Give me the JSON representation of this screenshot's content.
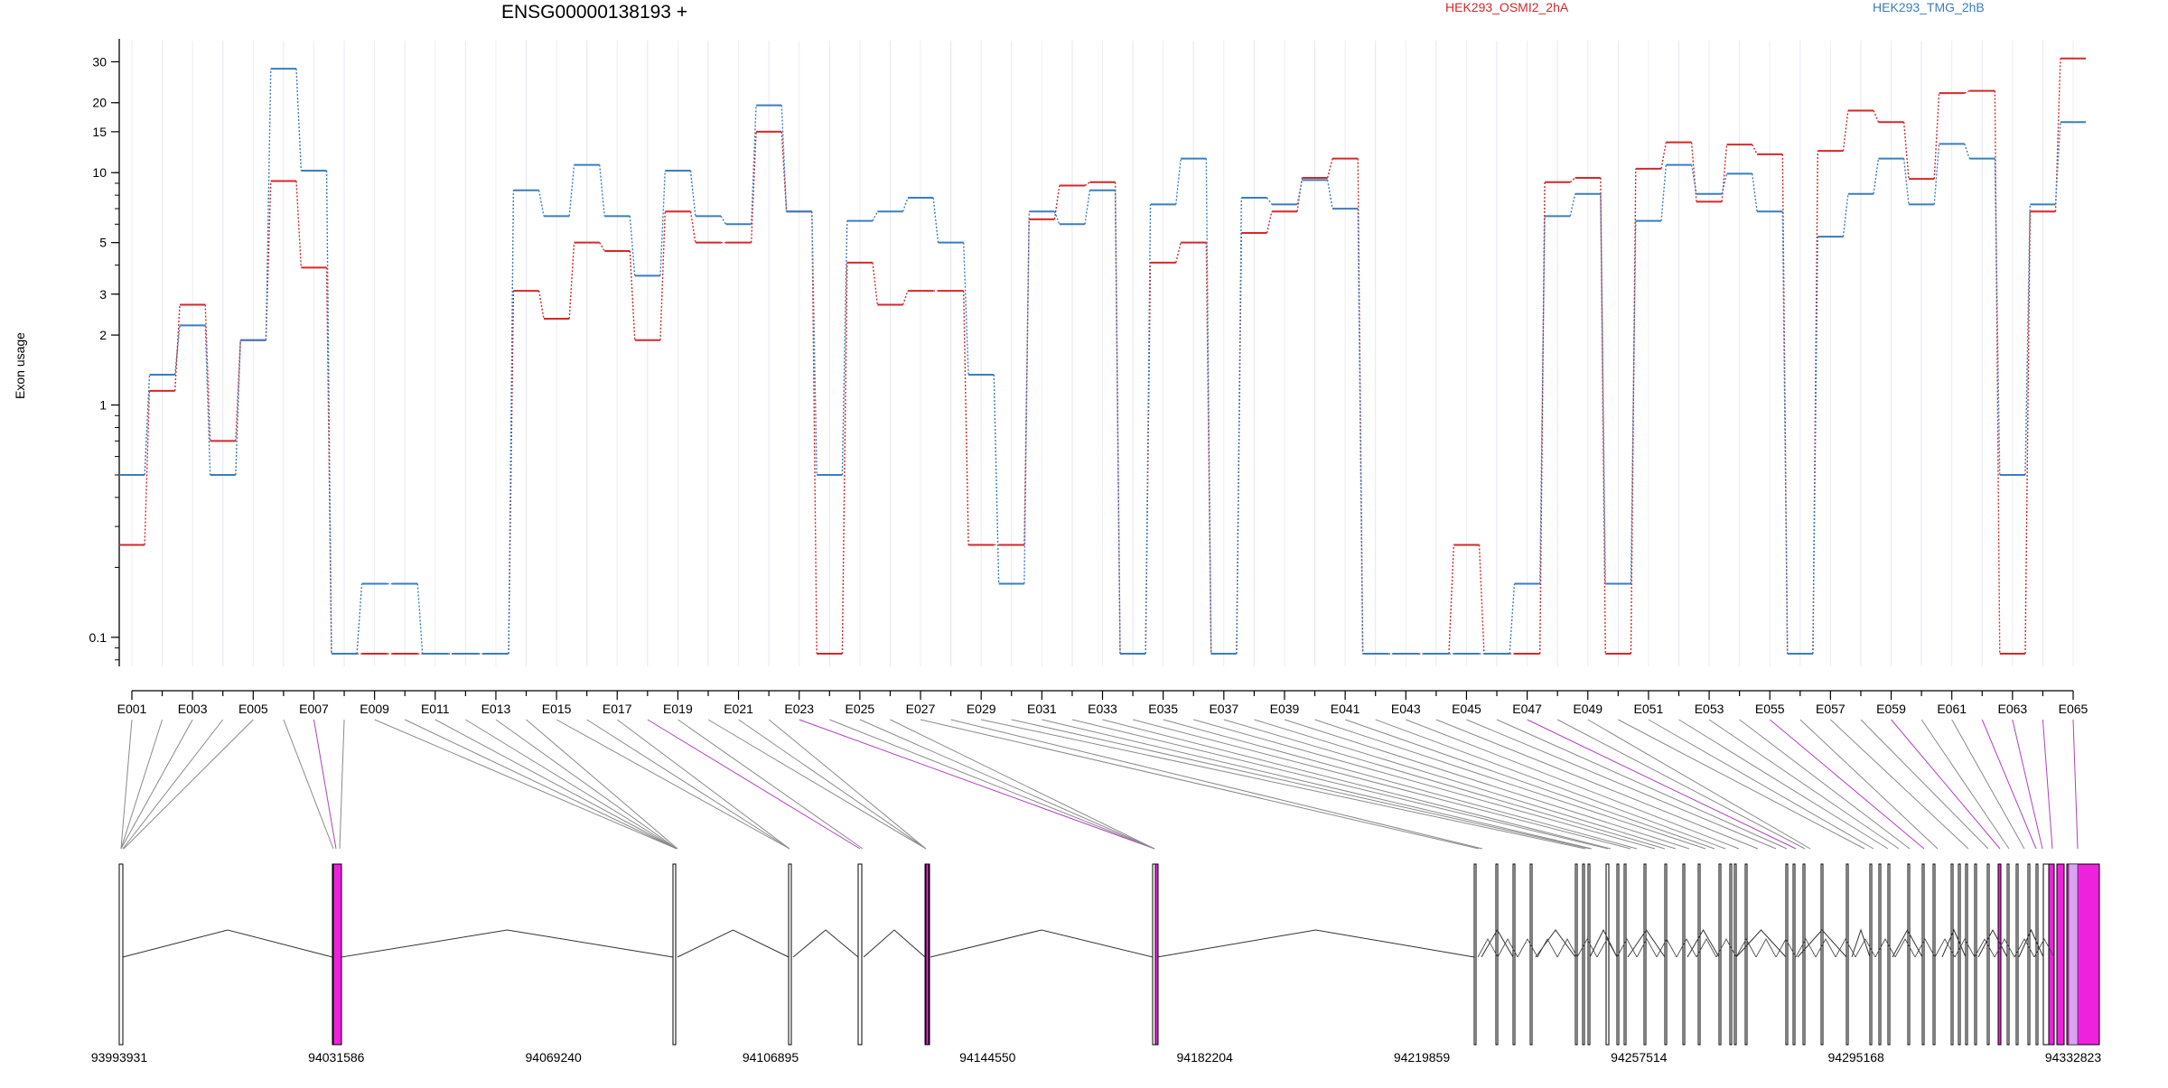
{
  "chart_data": {
    "type": "line",
    "title": "ENSG00000138193 +",
    "ylabel": "Exon usage",
    "yscale": "log",
    "ylim": [
      0.075,
      37
    ],
    "grid": true,
    "legend_placement": "top",
    "y_ticks": [
      0.1,
      1,
      2,
      3,
      5,
      10,
      15,
      20,
      30
    ],
    "y_tick_labels": [
      "0.1",
      "1",
      "2",
      "3",
      "5",
      "10",
      "15",
      "20",
      "30"
    ],
    "categories": [
      "E001",
      "E002",
      "E003",
      "E004",
      "E005",
      "E006",
      "E007",
      "E008",
      "E009",
      "E010",
      "E011",
      "E012",
      "E013",
      "E014",
      "E015",
      "E016",
      "E017",
      "E018",
      "E019",
      "E020",
      "E021",
      "E022",
      "E023",
      "E024",
      "E025",
      "E026",
      "E027",
      "E028",
      "E029",
      "E030",
      "E031",
      "E032",
      "E033",
      "E034",
      "E035",
      "E036",
      "E037",
      "E038",
      "E039",
      "E040",
      "E041",
      "E042",
      "E043",
      "E044",
      "E045",
      "E046",
      "E047",
      "E048",
      "E049",
      "E050",
      "E051",
      "E052",
      "E053",
      "E054",
      "E055",
      "E056",
      "E057",
      "E058",
      "E059",
      "E060",
      "E061",
      "E062",
      "E063",
      "E064",
      "E065"
    ],
    "x_tick_labels": [
      "E001",
      "E003",
      "E005",
      "E007",
      "E009",
      "E011",
      "E013",
      "E015",
      "E017",
      "E019",
      "E021",
      "E023",
      "E025",
      "E027",
      "E029",
      "E031",
      "E033",
      "E035",
      "E037",
      "E039",
      "E041",
      "E043",
      "E045",
      "E047",
      "E049",
      "E051",
      "E053",
      "E055",
      "E057",
      "E059",
      "E061",
      "E063",
      "E065"
    ],
    "series": [
      {
        "name": "HEK293_OSMI2_2hA",
        "color": "#d62728",
        "values": [
          0.25,
          1.15,
          2.7,
          0.7,
          1.9,
          9.2,
          3.9,
          0.085,
          0.085,
          0.085,
          0.085,
          0.085,
          0.085,
          3.1,
          2.35,
          5.0,
          4.6,
          1.9,
          6.8,
          5.0,
          5.0,
          15.0,
          6.8,
          0.085,
          4.1,
          2.7,
          3.1,
          3.1,
          0.25,
          0.25,
          6.3,
          8.8,
          9.1,
          0.085,
          4.1,
          5.0,
          0.085,
          5.5,
          6.8,
          9.5,
          11.5,
          0.085,
          0.085,
          0.085,
          0.25,
          0.085,
          0.085,
          9.1,
          9.5,
          0.085,
          10.4,
          13.5,
          7.5,
          13.2,
          12.0,
          0.085,
          12.4,
          18.5,
          16.5,
          9.4,
          22.0,
          22.5,
          0.085,
          6.8,
          31.0
        ]
      },
      {
        "name": "HEK293_TMG_2hB",
        "color": "#3a7dc0",
        "values": [
          0.5,
          1.35,
          2.2,
          0.5,
          1.9,
          28.0,
          10.2,
          0.085,
          0.17,
          0.17,
          0.085,
          0.085,
          0.085,
          8.4,
          6.5,
          10.8,
          6.5,
          3.6,
          10.2,
          6.5,
          6.0,
          19.5,
          6.8,
          0.5,
          6.2,
          6.8,
          7.8,
          5.0,
          1.35,
          0.17,
          6.8,
          6.0,
          8.4,
          0.085,
          7.3,
          11.5,
          0.085,
          7.8,
          7.3,
          9.3,
          7.0,
          0.085,
          0.085,
          0.085,
          0.085,
          0.085,
          0.17,
          6.5,
          8.1,
          0.17,
          6.2,
          10.8,
          8.1,
          9.9,
          6.8,
          0.085,
          5.3,
          8.1,
          11.5,
          7.3,
          13.3,
          11.5,
          0.5,
          7.3,
          16.5
        ]
      }
    ],
    "genomic_axis": {
      "tick_labels": [
        "93993931",
        "94031586",
        "94069240",
        "94106895",
        "94144550",
        "94182204",
        "94219859",
        "94257514",
        "94295168",
        "94332823"
      ],
      "exon_highlight": [
        "E007",
        "E018",
        "E023",
        "E047",
        "E055",
        "E059",
        "E062",
        "E063",
        "E064",
        "E065"
      ]
    }
  }
}
